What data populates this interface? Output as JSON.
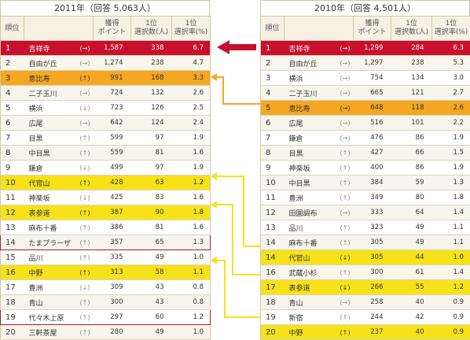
{
  "left": {
    "title": "2011年（回答 5,063人）",
    "headers": {
      "rank": "順位",
      "points": "獲得\nポイント",
      "count": "1位\n選択数(人)",
      "rate": "1位\n選択率(%)"
    },
    "rows": [
      {
        "rank": "1",
        "name": "吉祥寺",
        "trend": "(→)",
        "points": "1,587",
        "count": "338",
        "rate": "6.7",
        "hl": "red"
      },
      {
        "rank": "2",
        "name": "自由が丘",
        "trend": "(→)",
        "points": "1,274",
        "count": "238",
        "rate": "4.7",
        "hl": ""
      },
      {
        "rank": "3",
        "name": "恵比寿",
        "trend": "(↑)",
        "points": "991",
        "count": "168",
        "rate": "3.3",
        "hl": "orange"
      },
      {
        "rank": "4",
        "name": "二子玉川",
        "trend": "(→)",
        "points": "724",
        "count": "132",
        "rate": "2.6",
        "hl": ""
      },
      {
        "rank": "5",
        "name": "横浜",
        "trend": "(↓)",
        "points": "723",
        "count": "126",
        "rate": "2.5",
        "hl": ""
      },
      {
        "rank": "6",
        "name": "広尾",
        "trend": "(→)",
        "points": "642",
        "count": "124",
        "rate": "2.4",
        "hl": ""
      },
      {
        "rank": "7",
        "name": "目黒",
        "trend": "(↑)",
        "points": "599",
        "count": "97",
        "rate": "1.9",
        "hl": ""
      },
      {
        "rank": "8",
        "name": "中目黒",
        "trend": "(↑)",
        "points": "559",
        "count": "81",
        "rate": "1.6",
        "hl": ""
      },
      {
        "rank": "9",
        "name": "鎌倉",
        "trend": "(↓)",
        "points": "499",
        "count": "97",
        "rate": "1.9",
        "hl": ""
      },
      {
        "rank": "10",
        "name": "代官山",
        "trend": "(↑)",
        "points": "428",
        "count": "63",
        "rate": "1.2",
        "hl": "yellow"
      },
      {
        "rank": "11",
        "name": "神楽坂",
        "trend": "(↓)",
        "points": "425",
        "count": "83",
        "rate": "1.6",
        "hl": ""
      },
      {
        "rank": "12",
        "name": "表参道",
        "trend": "(↑)",
        "points": "387",
        "count": "90",
        "rate": "1.8",
        "hl": "yellow"
      },
      {
        "rank": "13",
        "name": "麻布十番",
        "trend": "(↑)",
        "points": "386",
        "count": "81",
        "rate": "1.6",
        "hl": ""
      },
      {
        "rank": "14",
        "name": "たまプラーザ",
        "trend": "(↑)",
        "points": "357",
        "count": "65",
        "rate": "1.3",
        "hl": "",
        "boxed": true
      },
      {
        "rank": "15",
        "name": "品川",
        "trend": "(↑)",
        "points": "335",
        "count": "49",
        "rate": "1.0",
        "hl": ""
      },
      {
        "rank": "16",
        "name": "中野",
        "trend": "(↑)",
        "points": "313",
        "count": "58",
        "rate": "1.1",
        "hl": "yellow"
      },
      {
        "rank": "17",
        "name": "豊洲",
        "trend": "(↓)",
        "points": "309",
        "count": "43",
        "rate": "0.8",
        "hl": ""
      },
      {
        "rank": "18",
        "name": "青山",
        "trend": "(↑)",
        "points": "300",
        "count": "43",
        "rate": "0.8",
        "hl": ""
      },
      {
        "rank": "19",
        "name": "代々木上原",
        "trend": "(↑)",
        "points": "297",
        "count": "60",
        "rate": "1.2",
        "hl": "",
        "boxed": true
      },
      {
        "rank": "20",
        "name": "三軒茶屋",
        "trend": "(↑)",
        "points": "280",
        "count": "49",
        "rate": "1.0",
        "hl": ""
      }
    ]
  },
  "right": {
    "title": "2010年（回答 4,501人）",
    "headers": {
      "rank": "順位",
      "points": "獲得\nポイント",
      "count": "1位\n選択数(人)",
      "rate": "1位\n選択率(%)"
    },
    "rows": [
      {
        "rank": "1",
        "name": "吉祥寺",
        "trend": "(→)",
        "points": "1,299",
        "count": "284",
        "rate": "6.3",
        "hl": "red"
      },
      {
        "rank": "2",
        "name": "自由が丘",
        "trend": "(→)",
        "points": "1,297",
        "count": "238",
        "rate": "5.3",
        "hl": ""
      },
      {
        "rank": "3",
        "name": "横浜",
        "trend": "(→)",
        "points": "754",
        "count": "134",
        "rate": "3.0",
        "hl": ""
      },
      {
        "rank": "4",
        "name": "二子玉川",
        "trend": "(→)",
        "points": "665",
        "count": "121",
        "rate": "2.7",
        "hl": ""
      },
      {
        "rank": "5",
        "name": "恵比寿",
        "trend": "(→)",
        "points": "648",
        "count": "118",
        "rate": "2.6",
        "hl": "orange"
      },
      {
        "rank": "6",
        "name": "広尾",
        "trend": "(→)",
        "points": "516",
        "count": "101",
        "rate": "2.2",
        "hl": ""
      },
      {
        "rank": "7",
        "name": "鎌倉",
        "trend": "(→)",
        "points": "476",
        "count": "86",
        "rate": "1.9",
        "hl": ""
      },
      {
        "rank": "8",
        "name": "目黒",
        "trend": "(↑)",
        "points": "427",
        "count": "66",
        "rate": "1.5",
        "hl": ""
      },
      {
        "rank": "9",
        "name": "神楽坂",
        "trend": "(↑)",
        "points": "400",
        "count": "86",
        "rate": "1.9",
        "hl": ""
      },
      {
        "rank": "10",
        "name": "中目黒",
        "trend": "(↑)",
        "points": "384",
        "count": "59",
        "rate": "1.3",
        "hl": ""
      },
      {
        "rank": "11",
        "name": "豊洲",
        "trend": "(↑)",
        "points": "349",
        "count": "80",
        "rate": "1.8",
        "hl": ""
      },
      {
        "rank": "12",
        "name": "田園調布",
        "trend": "(→)",
        "points": "333",
        "count": "64",
        "rate": "1.4",
        "hl": ""
      },
      {
        "rank": "13",
        "name": "品川",
        "trend": "(↑)",
        "points": "323",
        "count": "49",
        "rate": "1.1",
        "hl": ""
      },
      {
        "rank": "14",
        "name": "麻布十番",
        "trend": "(↑)",
        "points": "305",
        "count": "49",
        "rate": "1.1",
        "hl": ""
      },
      {
        "rank": "14",
        "name": "代官山",
        "trend": "(↓)",
        "points": "305",
        "count": "44",
        "rate": "1.0",
        "hl": "yellow"
      },
      {
        "rank": "16",
        "name": "武蔵小杉",
        "trend": "(↑)",
        "points": "300",
        "count": "61",
        "rate": "1.4",
        "hl": ""
      },
      {
        "rank": "17",
        "name": "表参道",
        "trend": "(↓)",
        "points": "266",
        "count": "55",
        "rate": "1.2",
        "hl": "yellow"
      },
      {
        "rank": "18",
        "name": "青山",
        "trend": "(→)",
        "points": "258",
        "count": "40",
        "rate": "0.9",
        "hl": ""
      },
      {
        "rank": "19",
        "name": "新宿",
        "trend": "(↑)",
        "points": "244",
        "count": "42",
        "rate": "0.9",
        "hl": ""
      },
      {
        "rank": "20",
        "name": "中野",
        "trend": "(↑)",
        "points": "237",
        "count": "40",
        "rate": "0.9",
        "hl": "yellow"
      }
    ]
  },
  "colors": {
    "red": "#c8102e",
    "orange": "#f5a623",
    "yellow": "#f7e21a",
    "box": "#b3193a"
  }
}
